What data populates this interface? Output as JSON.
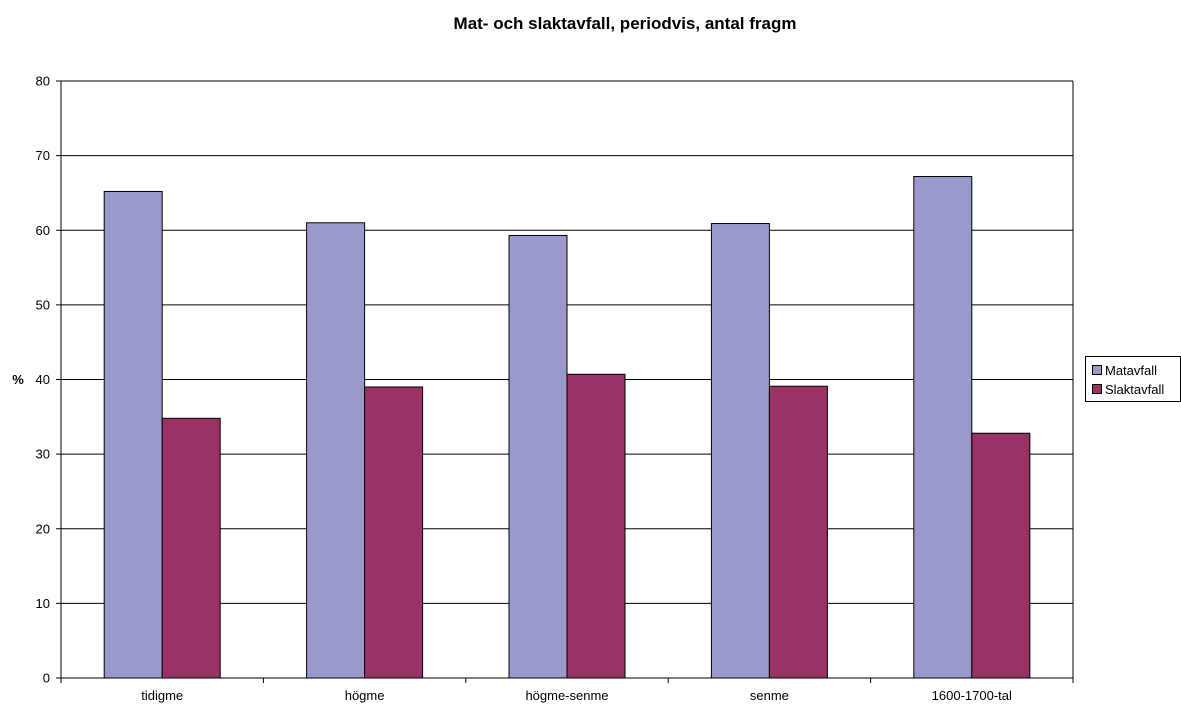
{
  "chart_data": {
    "type": "bar",
    "title": "Mat- och slaktavfall, periodvis, antal fragm",
    "ylabel": "%",
    "xlabel": "",
    "ylim": [
      0,
      80
    ],
    "yticks": [
      0,
      10,
      20,
      30,
      40,
      50,
      60,
      70,
      80
    ],
    "categories": [
      "tidigme",
      "högme",
      "högme-senme",
      "senme",
      "1600-1700-tal"
    ],
    "series": [
      {
        "name": "Matavfall",
        "values": [
          65.2,
          61.0,
          59.3,
          60.9,
          67.2
        ],
        "color": "#9999cc"
      },
      {
        "name": "Slaktavfall",
        "values": [
          34.8,
          39.0,
          40.7,
          39.1,
          32.8
        ],
        "color": "#993366"
      }
    ],
    "grid": true,
    "legend_position": "right"
  }
}
